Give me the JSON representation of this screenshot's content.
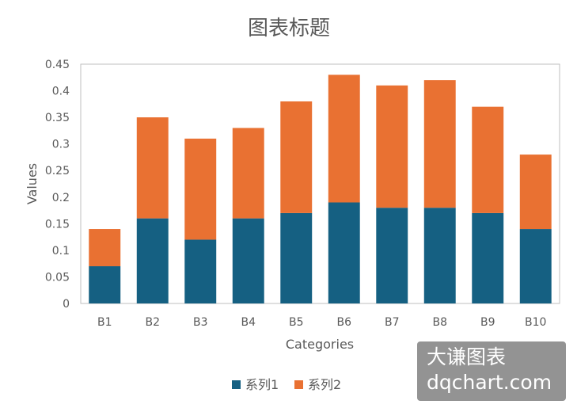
{
  "chart_data": {
    "type": "bar",
    "stacked": true,
    "title": "图表标题",
    "xlabel": "Categories",
    "ylabel": "Values",
    "categories": [
      "B1",
      "B2",
      "B3",
      "B4",
      "B5",
      "B6",
      "B7",
      "B8",
      "B9",
      "B10"
    ],
    "series": [
      {
        "name": "系列1",
        "color": "#156082",
        "values": [
          0.07,
          0.16,
          0.12,
          0.16,
          0.17,
          0.19,
          0.18,
          0.18,
          0.17,
          0.14
        ]
      },
      {
        "name": "系列2",
        "color": "#E97132",
        "values": [
          0.07,
          0.19,
          0.19,
          0.17,
          0.21,
          0.24,
          0.23,
          0.24,
          0.2,
          0.14
        ]
      }
    ],
    "ylim": [
      0,
      0.45
    ],
    "yticks": [
      "0",
      "0.05",
      "0.1",
      "0.15",
      "0.2",
      "0.25",
      "0.3",
      "0.35",
      "0.4",
      "0.45"
    ],
    "grid": false,
    "legend_position": "bottom"
  },
  "watermark": {
    "line1": "大谦图表",
    "line2": "dqchart.com"
  }
}
